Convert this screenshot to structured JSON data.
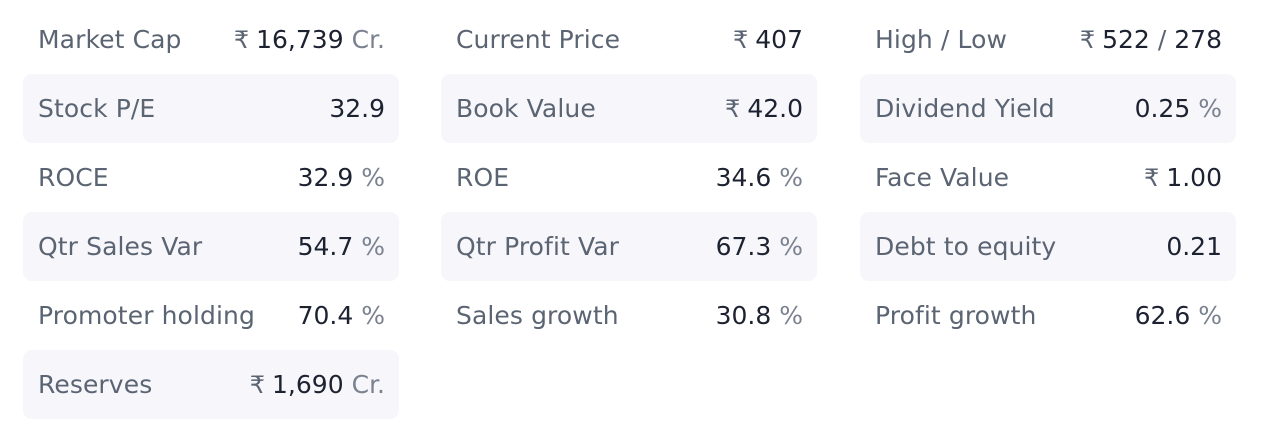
{
  "currency_symbol": "₹",
  "percent_symbol": "%",
  "crore_unit": "Cr.",
  "colors": {
    "shaded_row_bg": "#f6f6fb",
    "label_text": "#5b6472",
    "value_text": "#1d2231",
    "unit_text": "#7a8290"
  },
  "ratios": {
    "market_cap": {
      "label": "Market Cap",
      "value": "16,739"
    },
    "current_price": {
      "label": "Current Price",
      "value": "407"
    },
    "high_low": {
      "label": "High / Low",
      "high": "522",
      "separator": "/",
      "low": "278"
    },
    "stock_pe": {
      "label": "Stock P/E",
      "value": "32.9"
    },
    "book_value": {
      "label": "Book Value",
      "value": "42.0"
    },
    "dividend_yield": {
      "label": "Dividend Yield",
      "value": "0.25"
    },
    "roce": {
      "label": "ROCE",
      "value": "32.9"
    },
    "roe": {
      "label": "ROE",
      "value": "34.6"
    },
    "face_value": {
      "label": "Face Value",
      "value": "1.00"
    },
    "qtr_sales_var": {
      "label": "Qtr Sales Var",
      "value": "54.7"
    },
    "qtr_profit_var": {
      "label": "Qtr Profit Var",
      "value": "67.3"
    },
    "debt_to_equity": {
      "label": "Debt to equity",
      "value": "0.21"
    },
    "promoter_holding": {
      "label": "Promoter holding",
      "value": "70.4"
    },
    "sales_growth": {
      "label": "Sales growth",
      "value": "30.8"
    },
    "profit_growth": {
      "label": "Profit growth",
      "value": "62.6"
    },
    "reserves": {
      "label": "Reserves",
      "value": "1,690"
    }
  }
}
